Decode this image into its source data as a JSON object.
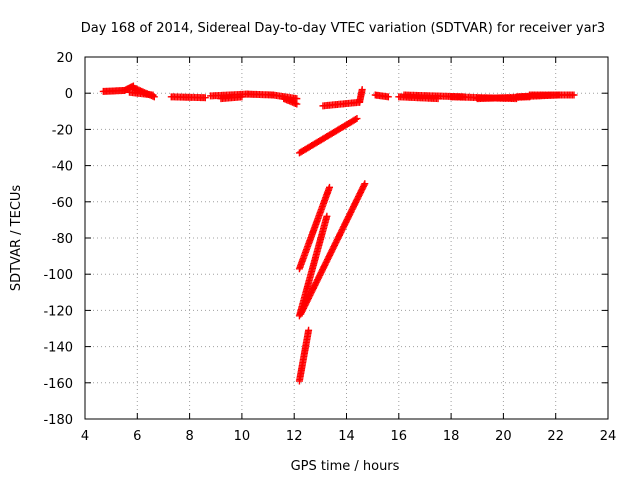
{
  "chart_data": {
    "type": "scatter",
    "title": "Day 168 of 2014, Sidereal Day-to-day VTEC variation (SDTVAR) for receiver yar3",
    "xlabel": "GPS time / hours",
    "ylabel": "SDTVAR / TECUs",
    "xlim": [
      4,
      24
    ],
    "ylim": [
      -180,
      20
    ],
    "xticks": [
      "4",
      "6",
      "8",
      "10",
      "12",
      "14",
      "16",
      "18",
      "20",
      "22",
      "24"
    ],
    "yticks": [
      "20",
      "0",
      "-20",
      "-40",
      "-60",
      "-80",
      "-100",
      "-120",
      "-140",
      "-160",
      "-180"
    ],
    "grid": true,
    "marker": "+",
    "color": "#ff0000",
    "tracks": [
      {
        "x0": 4.7,
        "x1": 5.5,
        "y0": 1,
        "y1": 1.5
      },
      {
        "x0": 5.5,
        "x1": 5.85,
        "y0": 1.5,
        "y1": 4
      },
      {
        "x0": 5.85,
        "x1": 6.65,
        "y0": 3,
        "y1": -2
      },
      {
        "x0": 5.7,
        "x1": 6.6,
        "y0": 0.5,
        "y1": -1
      },
      {
        "x0": 7.3,
        "x1": 8.6,
        "y0": -2,
        "y1": -2.5
      },
      {
        "x0": 8.8,
        "x1": 10.2,
        "y0": -1.5,
        "y1": -0.5
      },
      {
        "x0": 9.2,
        "x1": 10.0,
        "y0": -3,
        "y1": -2
      },
      {
        "x0": 10.2,
        "x1": 11.2,
        "y0": -0.5,
        "y1": -1
      },
      {
        "x0": 11.2,
        "x1": 12.1,
        "y0": -1,
        "y1": -3
      },
      {
        "x0": 11.6,
        "x1": 12.1,
        "y0": -3,
        "y1": -6
      },
      {
        "x0": 13.1,
        "x1": 14.5,
        "y0": -7,
        "y1": -5
      },
      {
        "x0": 14.5,
        "x1": 14.6,
        "y0": -5,
        "y1": 2
      },
      {
        "x0": 12.2,
        "x1": 14.4,
        "y0": -33,
        "y1": -14
      },
      {
        "x0": 12.2,
        "x1": 13.35,
        "y0": -97,
        "y1": -52
      },
      {
        "x0": 12.2,
        "x1": 13.25,
        "y0": -123,
        "y1": -68
      },
      {
        "x0": 12.25,
        "x1": 14.7,
        "y0": -122,
        "y1": -50
      },
      {
        "x0": 12.2,
        "x1": 12.55,
        "y0": -159,
        "y1": -131
      },
      {
        "x0": 15.1,
        "x1": 15.6,
        "y0": -1,
        "y1": -2
      },
      {
        "x0": 16.0,
        "x1": 17.5,
        "y0": -2,
        "y1": -3
      },
      {
        "x0": 16.2,
        "x1": 18.5,
        "y0": -1,
        "y1": -2
      },
      {
        "x0": 18.0,
        "x1": 20.5,
        "y0": -2,
        "y1": -3
      },
      {
        "x0": 19.0,
        "x1": 21.0,
        "y0": -3,
        "y1": -2
      },
      {
        "x0": 20.5,
        "x1": 22.1,
        "y0": -2,
        "y1": -1
      },
      {
        "x0": 21.0,
        "x1": 22.7,
        "y0": -1,
        "y1": -1
      }
    ]
  }
}
